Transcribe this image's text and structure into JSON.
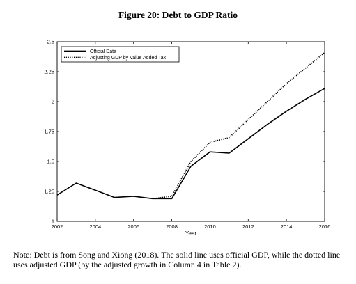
{
  "figure_title": "Figure 20: Debt to GDP Ratio",
  "note": "Note: Debt is from Song and Xiong (2018). The solid line uses official GDP, while the dotted line uses adjusted GDP (by the adjusted growth in Column 4 in Table 2).",
  "chart_data": {
    "type": "line",
    "title": "",
    "xlabel": "Year",
    "ylabel": "",
    "xlim": [
      2002,
      2016
    ],
    "ylim": [
      1,
      2.5
    ],
    "x_ticks": [
      2002,
      2004,
      2006,
      2008,
      2010,
      2012,
      2014,
      2016
    ],
    "y_ticks": [
      1,
      1.25,
      1.5,
      1.75,
      2,
      2.25,
      2.5
    ],
    "y_tick_labels": [
      "1",
      "1.25",
      "1.5",
      "1.75",
      "2",
      "2.25",
      "2.5"
    ],
    "grid": false,
    "legend_position": "top-left",
    "series": [
      {
        "name": "Official Data",
        "style": "solid",
        "x": [
          2002,
          2003,
          2004,
          2005,
          2006,
          2007,
          2008,
          2009,
          2010,
          2011,
          2012,
          2013,
          2014,
          2015,
          2016
        ],
        "y": [
          1.22,
          1.32,
          1.26,
          1.2,
          1.21,
          1.19,
          1.19,
          1.46,
          1.58,
          1.57,
          1.69,
          1.81,
          1.92,
          2.02,
          2.11
        ]
      },
      {
        "name": "Adjusting GDP by Value Added Tax",
        "style": "dotted",
        "x": [
          2007,
          2008,
          2009,
          2010,
          2011,
          2012,
          2013,
          2014,
          2015,
          2016
        ],
        "y": [
          1.19,
          1.21,
          1.5,
          1.66,
          1.7,
          1.85,
          2.0,
          2.15,
          2.28,
          2.41
        ]
      }
    ]
  }
}
